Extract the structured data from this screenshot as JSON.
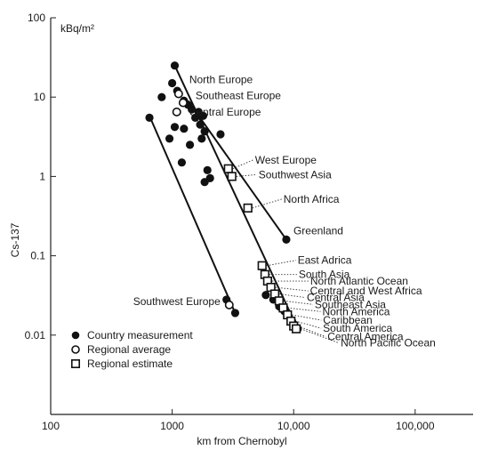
{
  "chart_data": {
    "type": "scatter",
    "x_scale": "log",
    "y_scale": "log",
    "xlim": [
      100,
      300000
    ],
    "ylim": [
      0.001,
      100
    ],
    "xlabel": "km from Chernobyl",
    "ylabel": "Cs-137",
    "yunit": "kBq/m²",
    "x_ticks": [
      {
        "value": 100,
        "label": "100"
      },
      {
        "value": 1000,
        "label": "1000"
      },
      {
        "value": 10000,
        "label": "10,000"
      },
      {
        "value": 100000,
        "label": "100,000"
      }
    ],
    "y_ticks": [
      {
        "value": 100,
        "label": "100"
      },
      {
        "value": 10,
        "label": "10"
      },
      {
        "value": 1,
        "label": "1"
      },
      {
        "value": 0.1,
        "label": "0.1"
      },
      {
        "value": 0.01,
        "label": "0.01"
      }
    ],
    "legend": [
      {
        "marker": "filled-circle",
        "label": "Country measurement"
      },
      {
        "marker": "open-circle",
        "label": "Regional average"
      },
      {
        "marker": "open-square",
        "label": "Regional estimate"
      }
    ],
    "legend_position": "bottom-left",
    "country_measurements": [
      {
        "x": 1050,
        "y": 25
      },
      {
        "x": 1000,
        "y": 15
      },
      {
        "x": 1100,
        "y": 12
      },
      {
        "x": 820,
        "y": 10
      },
      {
        "x": 1250,
        "y": 9
      },
      {
        "x": 1350,
        "y": 8
      },
      {
        "x": 1450,
        "y": 7
      },
      {
        "x": 1650,
        "y": 6.5
      },
      {
        "x": 1550,
        "y": 5.5
      },
      {
        "x": 1800,
        "y": 5.8
      },
      {
        "x": 1700,
        "y": 4.5
      },
      {
        "x": 1050,
        "y": 4.2
      },
      {
        "x": 1250,
        "y": 4
      },
      {
        "x": 1850,
        "y": 3.7
      },
      {
        "x": 2500,
        "y": 3.4
      },
      {
        "x": 1750,
        "y": 3
      },
      {
        "x": 950,
        "y": 3
      },
      {
        "x": 1400,
        "y": 2.5
      },
      {
        "x": 1200,
        "y": 1.5
      },
      {
        "x": 650,
        "y": 5.5
      },
      {
        "x": 1950,
        "y": 1.2
      },
      {
        "x": 2050,
        "y": 0.95
      },
      {
        "x": 1850,
        "y": 0.85
      },
      {
        "x": 8700,
        "y": 0.16
      },
      {
        "x": 5900,
        "y": 0.032
      },
      {
        "x": 6800,
        "y": 0.028
      },
      {
        "x": 7600,
        "y": 0.023
      },
      {
        "x": 8400,
        "y": 0.02
      },
      {
        "x": 9000,
        "y": 0.018
      },
      {
        "x": 9700,
        "y": 0.015
      },
      {
        "x": 10200,
        "y": 0.013
      },
      {
        "x": 10800,
        "y": 0.012
      },
      {
        "x": 2800,
        "y": 0.028
      },
      {
        "x": 3300,
        "y": 0.019
      }
    ],
    "regions": [
      {
        "name": "North Europe",
        "x": 1130,
        "y": 11,
        "marker": "open-circle",
        "label_pos": "upper-right"
      },
      {
        "name": "Southeast Europe",
        "x": 1230,
        "y": 8.5,
        "marker": "open-circle",
        "label_pos": "right"
      },
      {
        "name": "Central Europe",
        "x": 1090,
        "y": 6.5,
        "marker": "open-circle",
        "label_pos": "right"
      },
      {
        "name": "West Europe",
        "x": 2900,
        "y": 1.25,
        "marker": "open-square",
        "label_pos": "right"
      },
      {
        "name": "Southwest Asia",
        "x": 3100,
        "y": 1,
        "marker": "open-square",
        "label_pos": "right"
      },
      {
        "name": "North Africa",
        "x": 4200,
        "y": 0.4,
        "marker": "open-square",
        "label_pos": "right"
      },
      {
        "name": "Greenland",
        "x": 8700,
        "y": 0.16,
        "marker": "filled-circle",
        "label_pos": "upper-right"
      },
      {
        "name": "East Adrica",
        "x": 5500,
        "y": 0.075,
        "marker": "open-square",
        "label_pos": "right"
      },
      {
        "name": "South Asia",
        "x": 5800,
        "y": 0.058,
        "marker": "open-square",
        "label_pos": "right"
      },
      {
        "name": "North Atlantic Ocean",
        "x": 6100,
        "y": 0.048,
        "marker": "open-square",
        "label_pos": "right"
      },
      {
        "name": "Central and West Africa",
        "x": 6500,
        "y": 0.04,
        "marker": "open-square",
        "label_pos": "right"
      },
      {
        "name": "Central Asia",
        "x": 7000,
        "y": 0.033,
        "marker": "open-square",
        "label_pos": "right"
      },
      {
        "name": "Southeast Asia",
        "x": 7600,
        "y": 0.027,
        "marker": "open-square",
        "label_pos": "right"
      },
      {
        "name": "North America",
        "x": 8200,
        "y": 0.022,
        "marker": "open-square",
        "label_pos": "right"
      },
      {
        "name": "Caribbean",
        "x": 8900,
        "y": 0.018,
        "marker": "open-square",
        "label_pos": "right"
      },
      {
        "name": "South America",
        "x": 9500,
        "y": 0.015,
        "marker": "open-square",
        "label_pos": "right"
      },
      {
        "name": "Central America",
        "x": 10000,
        "y": 0.013,
        "marker": "open-square",
        "label_pos": "right"
      },
      {
        "name": "North Pacific Ocean",
        "x": 10500,
        "y": 0.012,
        "marker": "open-square",
        "label_pos": "right"
      },
      {
        "name": "Southwest Europe",
        "x": 2950,
        "y": 0.024,
        "marker": "open-circle",
        "label_pos": "left"
      }
    ],
    "fit_lines": [
      {
        "from": {
          "x": 660,
          "y": 5.5
        },
        "to": {
          "x": 3300,
          "y": 0.019
        }
      },
      {
        "from": {
          "x": 1050,
          "y": 25
        },
        "to": {
          "x": 10800,
          "y": 0.012
        }
      },
      {
        "from": {
          "x": 1350,
          "y": 9
        },
        "to": {
          "x": 8700,
          "y": 0.16
        }
      }
    ]
  }
}
